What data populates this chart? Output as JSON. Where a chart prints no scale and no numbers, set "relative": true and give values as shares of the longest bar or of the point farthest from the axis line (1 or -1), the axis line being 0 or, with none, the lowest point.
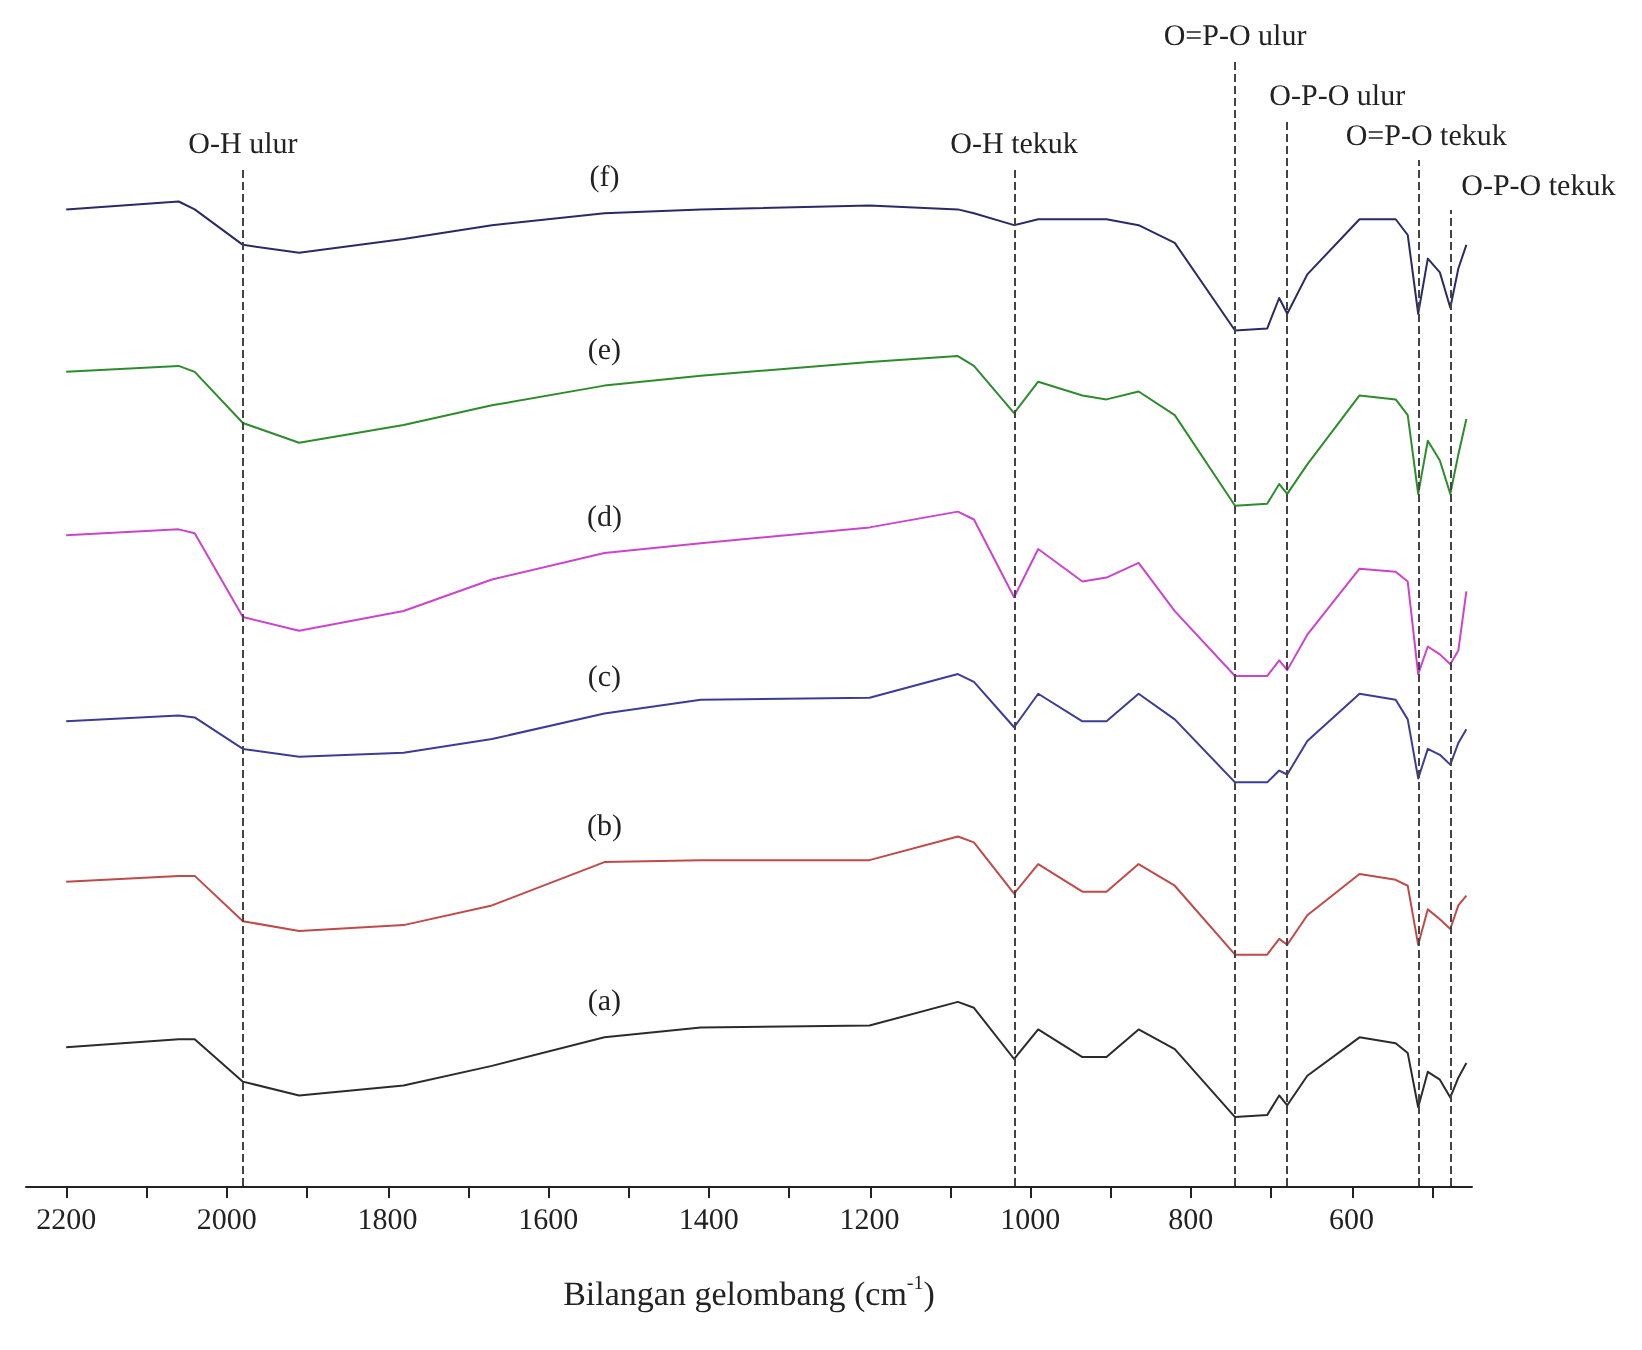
{
  "chart_data": {
    "type": "line",
    "relative": true,
    "xlabel": "Bilangan gelombang (cm$^{-1}$)",
    "xlim": [
      2250,
      450
    ],
    "xticks": [
      2200,
      {
        "value": 2100,
        "label": null
      },
      2000,
      {
        "value": 1900,
        "label": null
      },
      1800,
      {
        "value": 1700,
        "label": null
      },
      1600,
      {
        "value": 1500,
        "label": null
      },
      1400,
      {
        "value": 1300,
        "label": null
      },
      1200,
      {
        "value": 1100,
        "label": null
      },
      1000,
      {
        "value": 900,
        "label": null
      },
      800,
      {
        "value": 700,
        "label": null
      },
      600,
      {
        "value": 500,
        "label": null
      }
    ],
    "x": [
      2200,
      2060,
      2040,
      1980,
      1910,
      1780,
      1670,
      1530,
      1410,
      1200,
      1090,
      1070,
      1020,
      990,
      935,
      905,
      865,
      820,
      745,
      705,
      690,
      680,
      655,
      590,
      545,
      530,
      517,
      505,
      490,
      477,
      467,
      457
    ],
    "series": [
      {
        "name": "(a)",
        "color": "#2b2b2b",
        "values": [
          0.141,
          0.149,
          0.149,
          0.106,
          0.092,
          0.102,
          0.122,
          0.151,
          0.161,
          0.163,
          0.187,
          0.181,
          0.129,
          0.159,
          0.131,
          0.131,
          0.159,
          0.139,
          0.07,
          0.072,
          0.092,
          0.082,
          0.112,
          0.151,
          0.145,
          0.135,
          0.08,
          0.116,
          0.108,
          0.09,
          0.11,
          0.125
        ]
      },
      {
        "name": "(b)",
        "color": "#c04a48",
        "values": [
          0.309,
          0.315,
          0.315,
          0.269,
          0.259,
          0.265,
          0.285,
          0.329,
          0.331,
          0.331,
          0.355,
          0.349,
          0.297,
          0.327,
          0.299,
          0.299,
          0.327,
          0.305,
          0.235,
          0.235,
          0.251,
          0.245,
          0.275,
          0.317,
          0.311,
          0.305,
          0.245,
          0.281,
          0.271,
          0.261,
          0.285,
          0.295
        ]
      },
      {
        "name": "(c)",
        "color": "#3c3c98",
        "values": [
          0.472,
          0.478,
          0.476,
          0.444,
          0.436,
          0.44,
          0.454,
          0.48,
          0.494,
          0.496,
          0.52,
          0.512,
          0.466,
          0.5,
          0.472,
          0.472,
          0.5,
          0.474,
          0.41,
          0.41,
          0.422,
          0.418,
          0.452,
          0.5,
          0.494,
          0.474,
          0.414,
          0.444,
          0.438,
          0.428,
          0.45,
          0.464
        ]
      },
      {
        "name": "(d)",
        "color": "#cc44cc",
        "values": [
          0.661,
          0.667,
          0.663,
          0.578,
          0.564,
          0.584,
          0.616,
          0.643,
          0.653,
          0.669,
          0.685,
          0.677,
          0.598,
          0.647,
          0.614,
          0.618,
          0.633,
          0.584,
          0.518,
          0.518,
          0.534,
          0.524,
          0.56,
          0.627,
          0.624,
          0.614,
          0.52,
          0.548,
          0.54,
          0.53,
          0.544,
          0.604
        ]
      },
      {
        "name": "(e)",
        "color": "#2e8b2e",
        "values": [
          0.827,
          0.833,
          0.827,
          0.775,
          0.755,
          0.773,
          0.793,
          0.813,
          0.823,
          0.837,
          0.843,
          0.833,
          0.785,
          0.817,
          0.803,
          0.799,
          0.807,
          0.783,
          0.691,
          0.693,
          0.713,
          0.703,
          0.733,
          0.803,
          0.799,
          0.783,
          0.703,
          0.757,
          0.737,
          0.703,
          0.743,
          0.779
        ]
      },
      {
        "name": "(f)",
        "color": "#2a2a66",
        "values": [
          0.992,
          1.0,
          0.992,
          0.956,
          0.948,
          0.962,
          0.976,
          0.988,
          0.992,
          0.996,
          0.992,
          0.988,
          0.976,
          0.982,
          0.982,
          0.982,
          0.976,
          0.958,
          0.869,
          0.871,
          0.902,
          0.886,
          0.926,
          0.982,
          0.982,
          0.966,
          0.886,
          0.942,
          0.928,
          0.892,
          0.932,
          0.956
        ]
      }
    ],
    "ref_lines": [
      {
        "axis": "x",
        "value": 1980,
        "label": "O-H ulur",
        "line_style": "dashed"
      },
      {
        "axis": "x",
        "value": 1020,
        "label": "O-H tekuk",
        "line_style": "dashed"
      },
      {
        "axis": "x",
        "value": 745,
        "label": "O=P-O ulur",
        "line_style": "dashed"
      },
      {
        "axis": "x",
        "value": 680,
        "label": "O-P-O ulur",
        "line_style": "dashed"
      },
      {
        "axis": "x",
        "value": 517,
        "label": "O=P-O tekuk",
        "line_style": "dashed"
      },
      {
        "axis": "x",
        "value": 477,
        "label": "O-P-O tekuk",
        "line_style": "dashed"
      }
    ]
  }
}
